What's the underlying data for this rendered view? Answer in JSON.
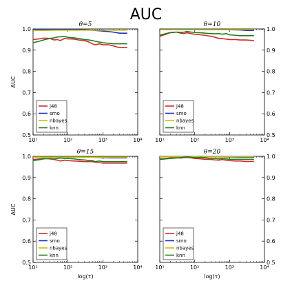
{
  "figure": {
    "title": "AUC"
  },
  "chart_data": [
    {
      "type": "line",
      "title": "θ=5",
      "xlabel": "",
      "ylabel": "AUC",
      "xscale": "log",
      "xlim": [
        10,
        10000
      ],
      "ylim": [
        0.5,
        1.0
      ],
      "x_ticks": [
        10,
        100,
        1000,
        10000
      ],
      "x_tick_labels": [
        "10¹",
        "10²",
        "10³",
        "10⁴"
      ],
      "y_ticks": [
        0.5,
        0.6,
        0.7,
        0.8,
        0.9,
        1.0
      ],
      "y_tick_labels": [
        "0.5",
        "0.6",
        "0.7",
        "0.8",
        "0.9",
        "1.0"
      ],
      "y_ticks_side": "left",
      "legend": "bottom-left",
      "series": [
        {
          "name": "j48",
          "color": "#d62728",
          "x": [
            10,
            15,
            20,
            30,
            40,
            50,
            60,
            80,
            100,
            150,
            200,
            300,
            400,
            500,
            600,
            800,
            1000,
            1500,
            2000,
            3000,
            5000
          ],
          "y": [
            0.95,
            0.953,
            0.957,
            0.955,
            0.948,
            0.95,
            0.945,
            0.955,
            0.953,
            0.952,
            0.948,
            0.945,
            0.938,
            0.93,
            0.925,
            0.93,
            0.925,
            0.925,
            0.92,
            0.912,
            0.912
          ]
        },
        {
          "name": "smo",
          "color": "#1f2fbf",
          "x": [
            10,
            20,
            50,
            100,
            200,
            400,
            600,
            1000,
            2000,
            3000,
            5000
          ],
          "y": [
            0.998,
            0.998,
            0.998,
            0.998,
            0.997,
            0.995,
            0.993,
            0.99,
            0.985,
            0.98,
            0.98
          ]
        },
        {
          "name": "nbayes",
          "color": "#c8c000",
          "x": [
            10,
            20,
            50,
            100,
            200,
            500,
            1000,
            2000,
            5000
          ],
          "y": [
            0.992,
            0.993,
            0.994,
            0.994,
            0.994,
            0.994,
            0.994,
            0.994,
            0.994
          ]
        },
        {
          "name": "knn",
          "color": "#1a7f1a",
          "x": [
            10,
            15,
            20,
            30,
            40,
            50,
            60,
            80,
            100,
            150,
            200,
            300,
            400,
            500,
            600,
            800,
            1000,
            1500,
            2000,
            3000,
            5000
          ],
          "y": [
            0.935,
            0.942,
            0.948,
            0.955,
            0.958,
            0.962,
            0.963,
            0.965,
            0.96,
            0.958,
            0.955,
            0.95,
            0.948,
            0.945,
            0.942,
            0.938,
            0.935,
            0.932,
            0.93,
            0.93,
            0.93
          ]
        }
      ]
    },
    {
      "type": "line",
      "title": "θ=10",
      "xlabel": "",
      "ylabel": "",
      "xscale": "log",
      "xlim": [
        10,
        10000
      ],
      "ylim": [
        0.5,
        1.0
      ],
      "x_ticks": [
        10,
        100,
        1000,
        10000
      ],
      "x_tick_labels": [
        "10¹",
        "10²",
        "10³",
        "10⁴"
      ],
      "y_ticks": [
        0.5,
        0.6,
        0.7,
        0.8,
        0.9,
        1.0
      ],
      "y_tick_labels": [
        "0.5",
        "0.6",
        "0.7",
        "0.8",
        "0.9",
        "1.0"
      ],
      "y_ticks_side": "right",
      "legend": "bottom-left",
      "series": [
        {
          "name": "j48",
          "color": "#d62728",
          "x": [
            10,
            15,
            20,
            30,
            40,
            50,
            60,
            80,
            100,
            150,
            200,
            300,
            400,
            500,
            600,
            800,
            1000,
            1500,
            2000,
            3000,
            5000
          ],
          "y": [
            0.965,
            0.975,
            0.982,
            0.985,
            0.98,
            0.978,
            0.982,
            0.978,
            0.975,
            0.972,
            0.97,
            0.965,
            0.96,
            0.955,
            0.955,
            0.952,
            0.95,
            0.95,
            0.948,
            0.948,
            0.945
          ]
        },
        {
          "name": "smo",
          "color": "#1f2fbf",
          "x": [
            10,
            20,
            50,
            100,
            200,
            500,
            1000,
            2000,
            3000,
            5000
          ],
          "y": [
            0.998,
            0.998,
            0.998,
            0.998,
            0.998,
            0.997,
            0.996,
            0.995,
            0.993,
            0.993
          ]
        },
        {
          "name": "nbayes",
          "color": "#c8c000",
          "x": [
            10,
            20,
            50,
            100,
            200,
            500,
            1000,
            2000,
            5000
          ],
          "y": [
            0.996,
            0.996,
            0.996,
            0.996,
            0.996,
            0.996,
            0.996,
            0.996,
            0.996
          ]
        },
        {
          "name": "knn",
          "color": "#1a7f1a",
          "x": [
            10,
            15,
            20,
            30,
            40,
            50,
            60,
            80,
            100,
            150,
            200,
            300,
            400,
            500,
            600,
            800,
            1000,
            1500,
            2000,
            3000,
            5000
          ],
          "y": [
            0.97,
            0.978,
            0.983,
            0.985,
            0.984,
            0.985,
            0.988,
            0.985,
            0.983,
            0.982,
            0.98,
            0.978,
            0.977,
            0.978,
            0.975,
            0.978,
            0.972,
            0.97,
            0.968,
            0.968,
            0.968
          ]
        }
      ]
    },
    {
      "type": "line",
      "title": "θ=15",
      "xlabel": "log(τ)",
      "ylabel": "AUC",
      "xscale": "log",
      "xlim": [
        10,
        10000
      ],
      "ylim": [
        0.5,
        1.0
      ],
      "x_ticks": [
        10,
        100,
        1000,
        10000
      ],
      "x_tick_labels": [
        "10¹",
        "10²",
        "10³",
        "10⁴"
      ],
      "y_ticks": [
        0.5,
        0.6,
        0.7,
        0.8,
        0.9,
        1.0
      ],
      "y_tick_labels": [
        "0.5",
        "0.6",
        "0.7",
        "0.8",
        "0.9",
        "1.0"
      ],
      "y_ticks_side": "left",
      "legend": "bottom-left",
      "series": [
        {
          "name": "j48",
          "color": "#d62728",
          "x": [
            10,
            15,
            20,
            30,
            40,
            50,
            60,
            80,
            100,
            150,
            200,
            300,
            400,
            500,
            600,
            800,
            1000,
            1500,
            2000,
            3000,
            5000
          ],
          "y": [
            0.985,
            0.988,
            0.99,
            0.988,
            0.985,
            0.982,
            0.978,
            0.982,
            0.98,
            0.978,
            0.977,
            0.975,
            0.975,
            0.975,
            0.972,
            0.97,
            0.968,
            0.968,
            0.968,
            0.968,
            0.968
          ]
        },
        {
          "name": "smo",
          "color": "#1f2fbf",
          "x": [
            10,
            20,
            50,
            100,
            200,
            500,
            1000,
            2000,
            5000
          ],
          "y": [
            0.998,
            0.998,
            0.998,
            0.998,
            0.997,
            0.996,
            0.994,
            0.993,
            0.993
          ]
        },
        {
          "name": "nbayes",
          "color": "#c8c000",
          "x": [
            10,
            20,
            50,
            100,
            200,
            500,
            1000,
            2000,
            5000
          ],
          "y": [
            0.996,
            0.996,
            0.996,
            0.996,
            0.996,
            0.996,
            0.996,
            0.996,
            0.996
          ]
        },
        {
          "name": "knn",
          "color": "#1a7f1a",
          "x": [
            10,
            15,
            20,
            30,
            40,
            50,
            60,
            80,
            100,
            150,
            200,
            300,
            400,
            500,
            600,
            800,
            1000,
            1500,
            2000,
            3000,
            5000
          ],
          "y": [
            0.98,
            0.984,
            0.988,
            0.99,
            0.988,
            0.99,
            0.992,
            0.99,
            0.99,
            0.988,
            0.985,
            0.983,
            0.98,
            0.98,
            0.975,
            0.978,
            0.975,
            0.975,
            0.975,
            0.975,
            0.975
          ]
        }
      ]
    },
    {
      "type": "line",
      "title": "θ=20",
      "xlabel": "log(τ)",
      "ylabel": "",
      "xscale": "log",
      "xlim": [
        10,
        10000
      ],
      "ylim": [
        0.5,
        1.0
      ],
      "x_ticks": [
        10,
        100,
        1000,
        10000
      ],
      "x_tick_labels": [
        "10¹",
        "10²",
        "10³",
        "10⁴"
      ],
      "y_ticks": [
        0.5,
        0.6,
        0.7,
        0.8,
        0.9,
        1.0
      ],
      "y_tick_labels": [
        "0.5",
        "0.6",
        "0.7",
        "0.8",
        "0.9",
        "1.0"
      ],
      "y_ticks_side": "right",
      "legend": "bottom-left",
      "series": [
        {
          "name": "j48",
          "color": "#d62728",
          "x": [
            10,
            15,
            20,
            30,
            40,
            50,
            60,
            80,
            100,
            150,
            200,
            300,
            400,
            500,
            600,
            800,
            1000,
            1500,
            2000,
            3000,
            5000
          ],
          "y": [
            0.988,
            0.99,
            0.992,
            0.993,
            0.992,
            0.994,
            0.995,
            0.993,
            0.99,
            0.988,
            0.986,
            0.985,
            0.983,
            0.982,
            0.985,
            0.982,
            0.98,
            0.978,
            0.978,
            0.976,
            0.976
          ]
        },
        {
          "name": "smo",
          "color": "#1f2fbf",
          "x": [
            10,
            20,
            50,
            100,
            200,
            500,
            1000,
            2000,
            5000
          ],
          "y": [
            0.998,
            0.998,
            0.998,
            0.998,
            0.998,
            0.998,
            0.997,
            0.996,
            0.996
          ]
        },
        {
          "name": "nbayes",
          "color": "#c8c000",
          "x": [
            10,
            20,
            50,
            100,
            200,
            500,
            1000,
            2000,
            5000
          ],
          "y": [
            0.998,
            0.998,
            0.998,
            0.998,
            0.998,
            0.998,
            0.998,
            0.998,
            0.998
          ]
        },
        {
          "name": "knn",
          "color": "#1a7f1a",
          "x": [
            10,
            15,
            20,
            30,
            40,
            50,
            60,
            80,
            100,
            150,
            200,
            300,
            400,
            500,
            600,
            800,
            1000,
            1500,
            2000,
            3000,
            5000
          ],
          "y": [
            0.985,
            0.988,
            0.99,
            0.992,
            0.994,
            0.996,
            0.998,
            0.995,
            0.993,
            0.995,
            0.993,
            0.99,
            0.99,
            0.988,
            0.99,
            0.988,
            0.986,
            0.986,
            0.986,
            0.986,
            0.986
          ]
        }
      ]
    }
  ]
}
